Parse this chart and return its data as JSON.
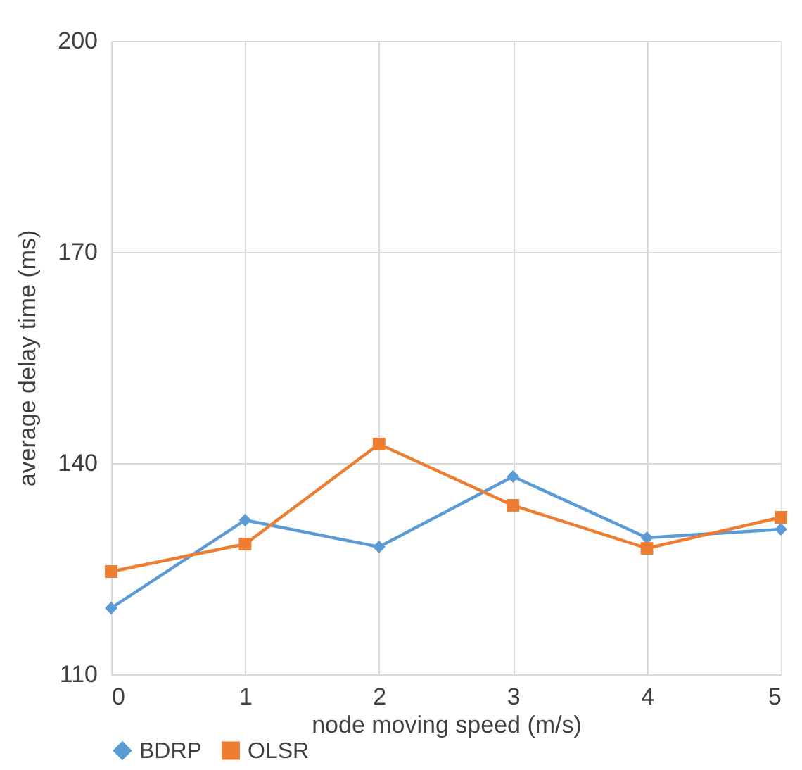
{
  "chart_data": {
    "type": "line",
    "xlabel": "node moving speed (m/s)",
    "ylabel": "average delay time (ms)",
    "x": [
      0,
      1,
      2,
      3,
      4,
      5
    ],
    "xlim": [
      0,
      5
    ],
    "xticks": [
      0,
      1,
      2,
      3,
      4,
      5
    ],
    "ylim": [
      110,
      200
    ],
    "yticks": [
      110,
      140,
      170,
      200
    ],
    "series": [
      {
        "name": "BDRP",
        "color": "#5b9bd5",
        "marker": "diamond",
        "values": [
          119.4,
          131.9,
          128.1,
          138.1,
          129.4,
          130.6
        ]
      },
      {
        "name": "OLSR",
        "color": "#ed7d31",
        "marker": "square",
        "values": [
          124.6,
          128.5,
          142.7,
          134.0,
          127.9,
          132.3
        ]
      }
    ],
    "grid": true,
    "legend": "bottom",
    "line_style": "solid"
  }
}
